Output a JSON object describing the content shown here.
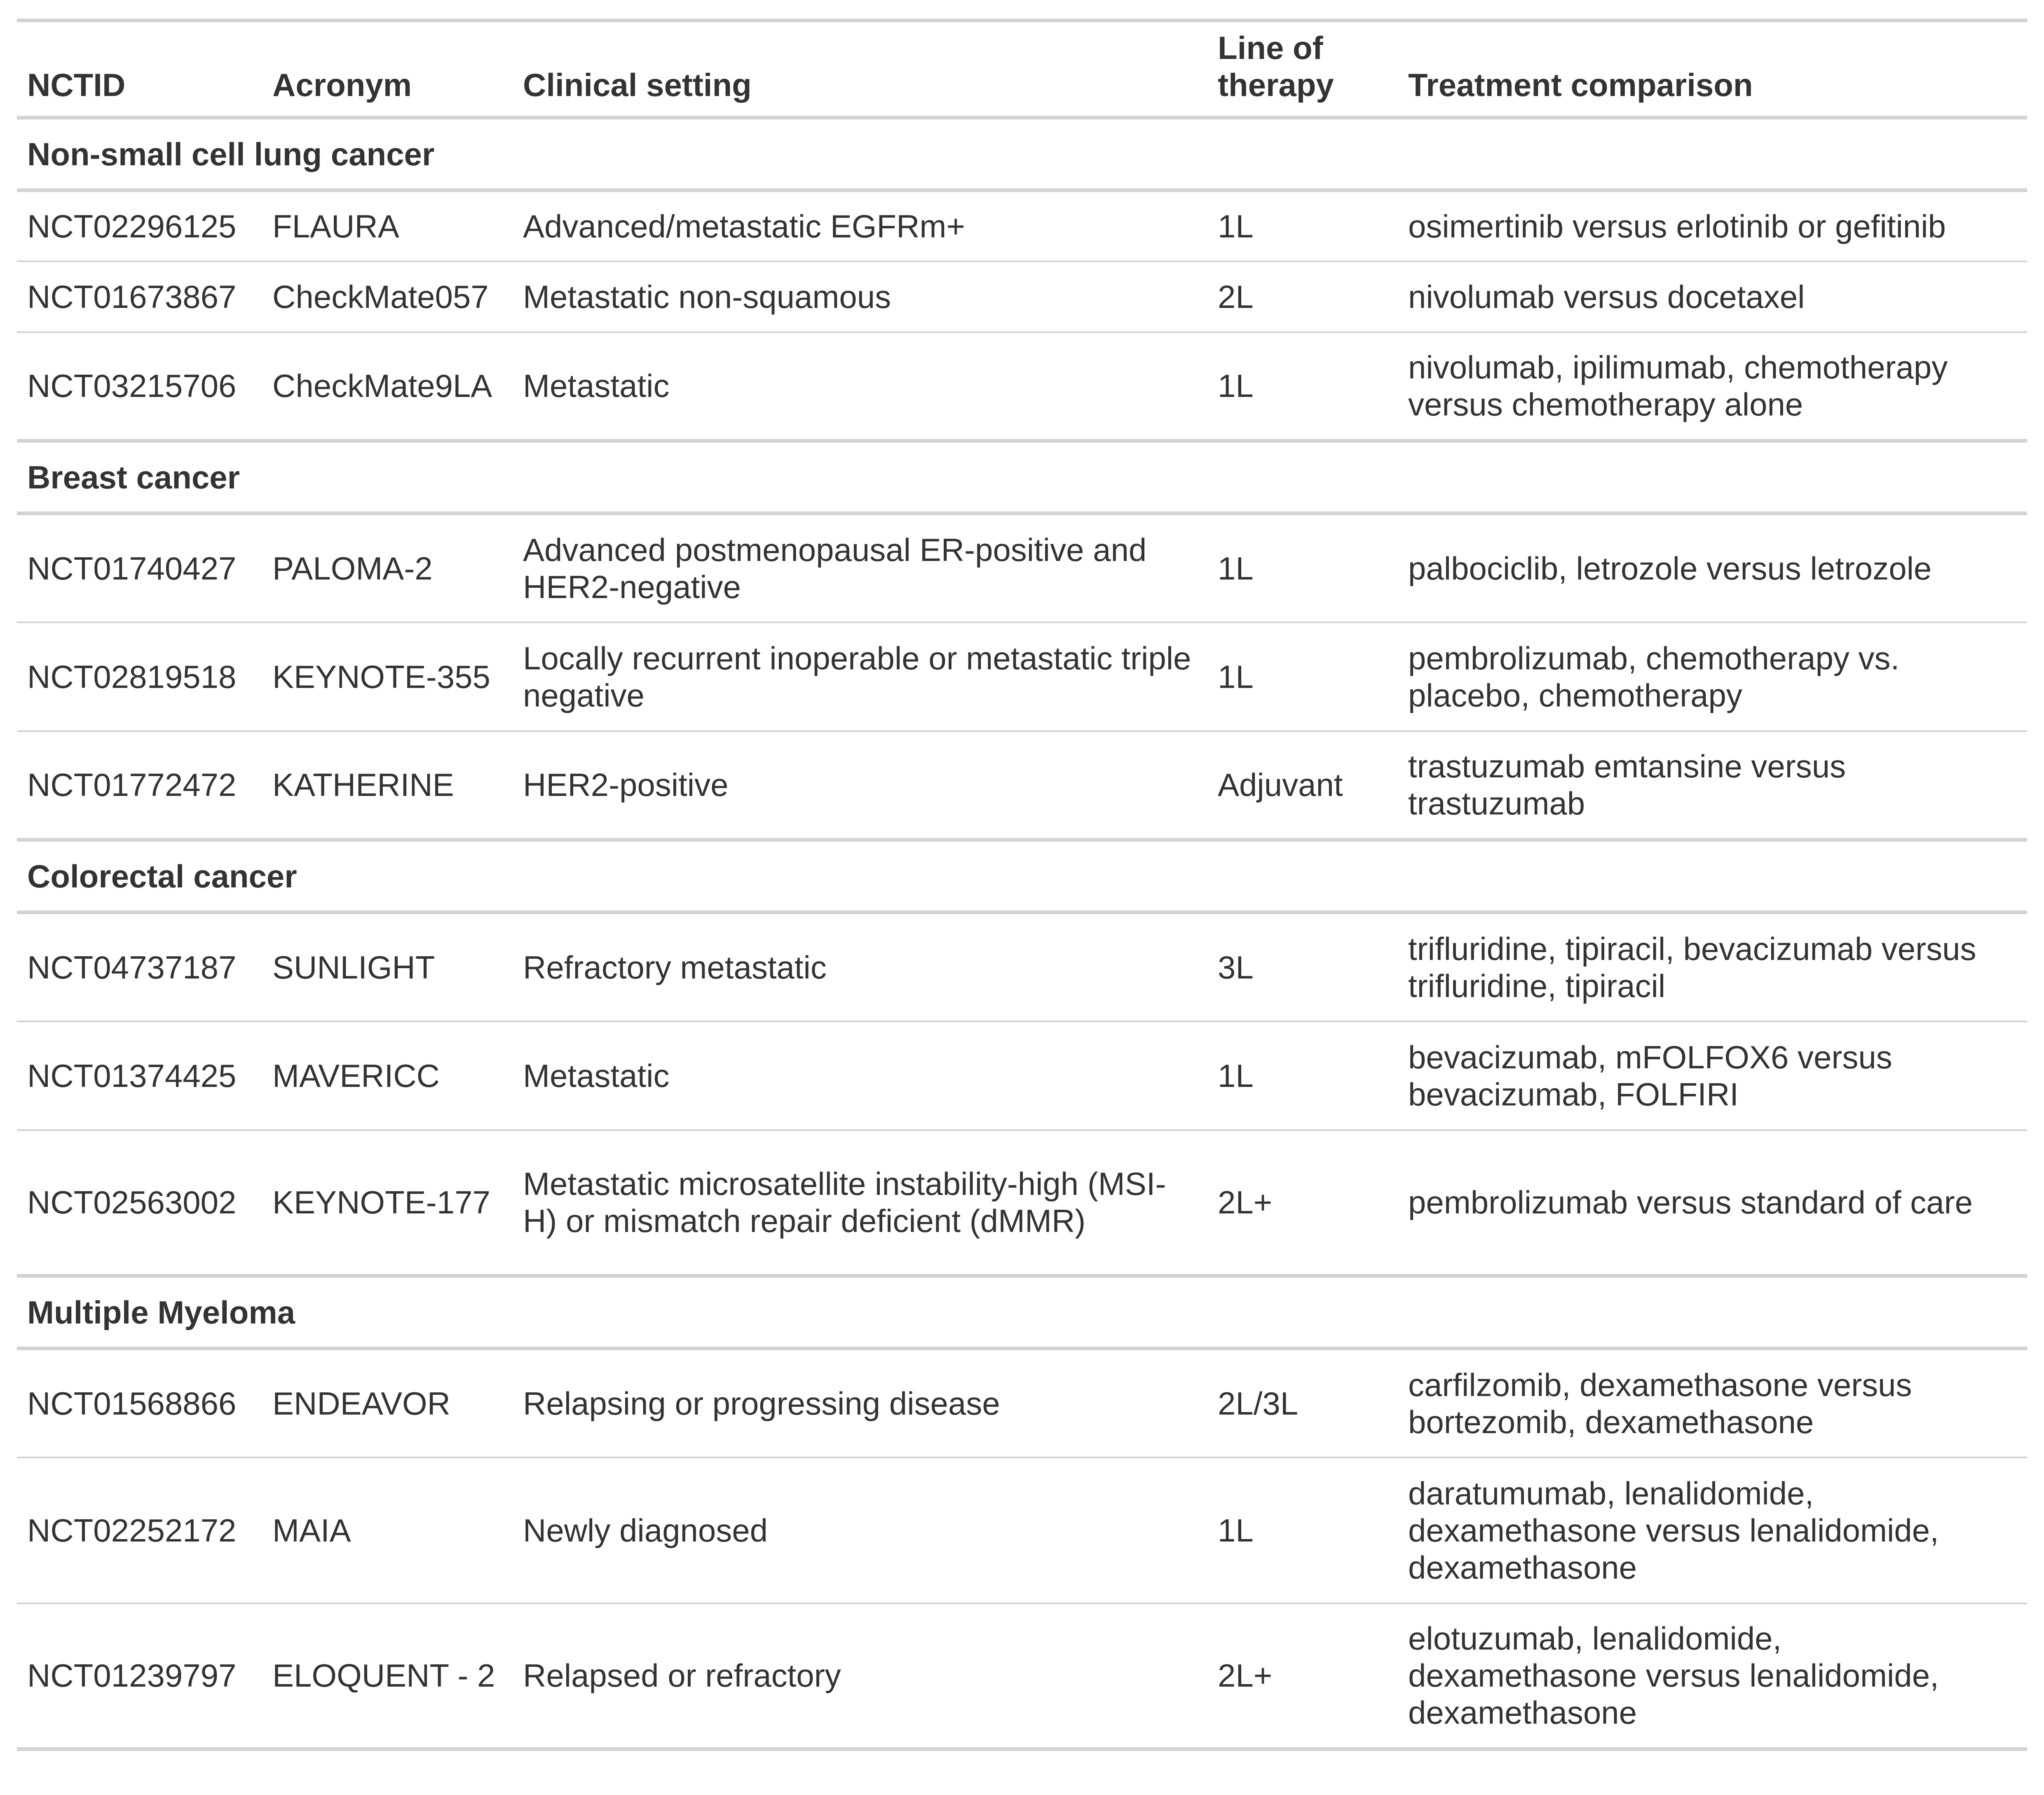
{
  "headers": {
    "nctid": "NCTID",
    "acronym": "Acronym",
    "setting": "Clinical setting",
    "line": "Line of therapy",
    "comparison": "Treatment comparison"
  },
  "groups": [
    {
      "name": "Non-small cell lung cancer",
      "rows": [
        {
          "nctid": "NCT02296125",
          "acronym": "FLAURA",
          "setting": "Advanced/metastatic EGFRm+",
          "line": "1L",
          "comparison": "osimertinib versus erlotinib or gefitinib"
        },
        {
          "nctid": "NCT01673867",
          "acronym": "CheckMate057",
          "setting": "Metastatic non-squamous",
          "line": "2L",
          "comparison": "nivolumab versus docetaxel"
        },
        {
          "nctid": "NCT03215706",
          "acronym": "CheckMate9LA",
          "setting": "Metastatic",
          "line": "1L",
          "comparison": "nivolumab, ipilimumab, chemotherapy versus chemotherapy alone"
        }
      ]
    },
    {
      "name": "Breast cancer",
      "rows": [
        {
          "nctid": "NCT01740427",
          "acronym": "PALOMA-2",
          "setting": "Advanced postmenopausal ER-positive and HER2-negative",
          "line": "1L",
          "comparison": "palbociclib, letrozole versus letrozole"
        },
        {
          "nctid": "NCT02819518",
          "acronym": "KEYNOTE-355",
          "setting": "Locally recurrent inoperable or metastatic triple negative",
          "line": "1L",
          "comparison": "pembrolizumab, chemotherapy vs. placebo, chemotherapy"
        },
        {
          "nctid": "NCT01772472",
          "acronym": "KATHERINE",
          "setting": "HER2-positive",
          "line": "Adjuvant",
          "comparison": "trastuzumab emtansine versus trastuzumab"
        }
      ]
    },
    {
      "name": "Colorectal cancer",
      "rows": [
        {
          "nctid": "NCT04737187",
          "acronym": "SUNLIGHT",
          "setting": "Refractory metastatic",
          "line": "3L",
          "comparison": "trifluridine, tipiracil, bevacizumab versus trifluridine, tipiracil"
        },
        {
          "nctid": "NCT01374425",
          "acronym": "MAVERICC",
          "setting": "Metastatic",
          "line": "1L",
          "comparison": "bevacizumab, mFOLFOX6 versus bevacizumab, FOLFIRI"
        },
        {
          "nctid": "NCT02563002",
          "acronym": "KEYNOTE-177",
          "setting": "Metastatic microsatellite instability-high (MSI-H) or mismatch repair deficient (dMMR)",
          "line": "2L+",
          "comparison": "pembrolizumab versus standard of care"
        }
      ]
    },
    {
      "name": "Multiple Myeloma",
      "rows": [
        {
          "nctid": "NCT01568866",
          "acronym": "ENDEAVOR",
          "setting": "Relapsing or progressing disease",
          "line": "2L/3L",
          "comparison": "carfilzomib, dexamethasone versus bortezomib, dexamethasone"
        },
        {
          "nctid": "NCT02252172",
          "acronym": "MAIA",
          "setting": "Newly diagnosed",
          "line": "1L",
          "comparison": "daratumumab, lenalidomide, dexamethasone versus lenalidomide, dexamethasone"
        },
        {
          "nctid": "NCT01239797",
          "acronym": "ELOQUENT - 2",
          "setting": "Relapsed or refractory",
          "line": "2L+",
          "comparison": "elotuzumab, lenalidomide, dexamethasone versus lenalidomide, dexamethasone"
        }
      ]
    }
  ]
}
